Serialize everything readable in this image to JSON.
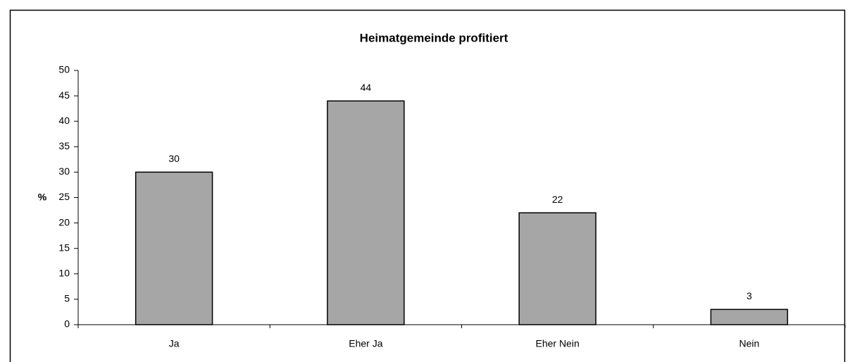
{
  "chart_data": {
    "type": "bar",
    "title": "Heimatgemeinde profitiert",
    "y_label": "%",
    "categories": [
      "Ja",
      "Eher Ja",
      "Eher Nein",
      "Nein"
    ],
    "values": [
      30,
      44,
      22,
      3
    ],
    "color": "#a6a6a6",
    "ylim": [
      0,
      50
    ],
    "yticks": [
      0,
      5,
      10,
      15,
      20,
      25,
      30,
      35,
      40,
      45,
      50
    ],
    "grid": false
  }
}
